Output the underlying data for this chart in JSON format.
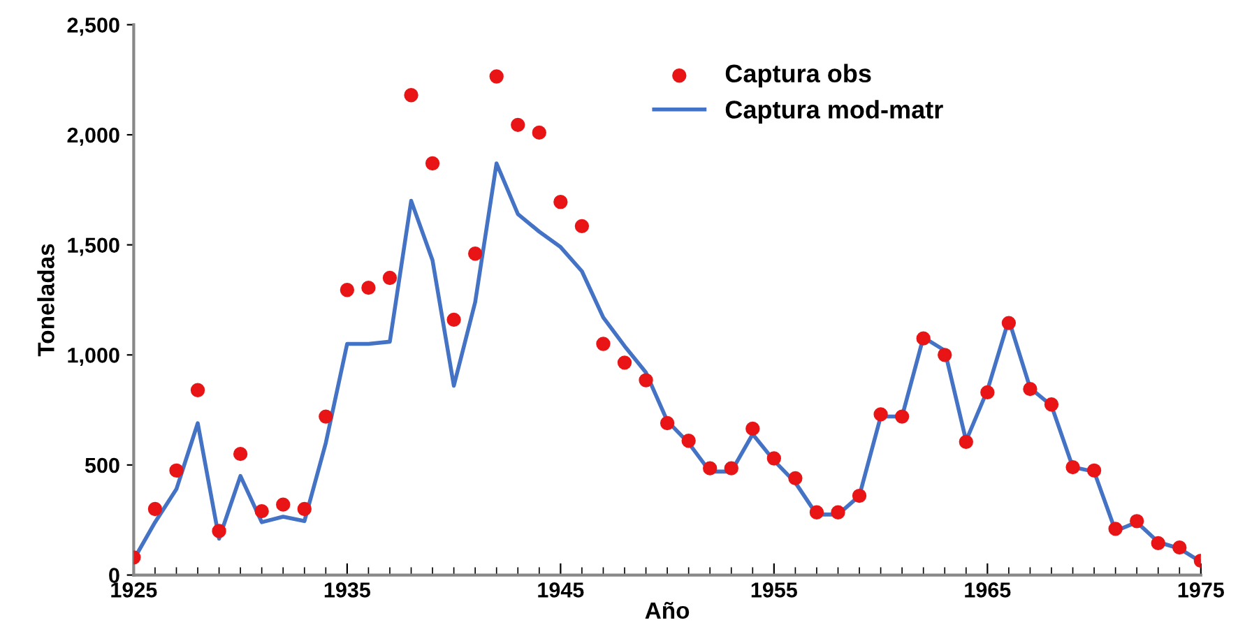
{
  "chart_data": {
    "type": "line",
    "xlabel": "Año",
    "ylabel": "Toneladas",
    "x": [
      1925,
      1926,
      1927,
      1928,
      1929,
      1930,
      1931,
      1932,
      1933,
      1934,
      1935,
      1936,
      1937,
      1938,
      1939,
      1940,
      1941,
      1942,
      1943,
      1944,
      1945,
      1946,
      1947,
      1948,
      1949,
      1950,
      1951,
      1952,
      1953,
      1954,
      1955,
      1956,
      1957,
      1958,
      1959,
      1960,
      1961,
      1962,
      1963,
      1964,
      1965,
      1966,
      1967,
      1968,
      1969,
      1970,
      1971,
      1972,
      1973,
      1974,
      1975
    ],
    "series": [
      {
        "name": "Captura obs",
        "type": "scatter",
        "color": "#e81416",
        "marker": "circle",
        "values": [
          80,
          300,
          475,
          840,
          200,
          550,
          290,
          320,
          300,
          720,
          1295,
          1305,
          1350,
          2180,
          1870,
          1160,
          1460,
          2265,
          2045,
          2010,
          1695,
          1585,
          1050,
          965,
          885,
          690,
          610,
          485,
          485,
          665,
          530,
          440,
          285,
          285,
          360,
          730,
          720,
          1075,
          1000,
          605,
          830,
          1145,
          845,
          775,
          490,
          475,
          210,
          245,
          145,
          125,
          65
        ]
      },
      {
        "name": "Captura mod-matr",
        "color": "#4472c4",
        "line_style": "solid",
        "values": [
          70,
          240,
          390,
          690,
          165,
          450,
          240,
          265,
          245,
          600,
          1050,
          1050,
          1060,
          1700,
          1430,
          860,
          1240,
          1870,
          1640,
          1560,
          1490,
          1380,
          1170,
          1040,
          920,
          700,
          600,
          470,
          470,
          640,
          520,
          420,
          275,
          275,
          360,
          720,
          720,
          1080,
          1020,
          610,
          840,
          1160,
          850,
          770,
          490,
          470,
          200,
          240,
          150,
          120,
          60
        ]
      }
    ],
    "xlim": [
      1925,
      1975
    ],
    "xticks": [
      1925,
      1935,
      1945,
      1955,
      1965,
      1975
    ],
    "ylim": [
      0,
      2500
    ],
    "yticks": [
      0,
      {
        "value": 500,
        "label": "500"
      },
      {
        "value": 1000,
        "label": "1,000"
      },
      {
        "value": 1500,
        "label": "1,500"
      },
      {
        "value": 2000,
        "label": "2,000"
      },
      {
        "value": 2500,
        "label": "2,500"
      }
    ],
    "grid": false,
    "legend": "top right"
  }
}
